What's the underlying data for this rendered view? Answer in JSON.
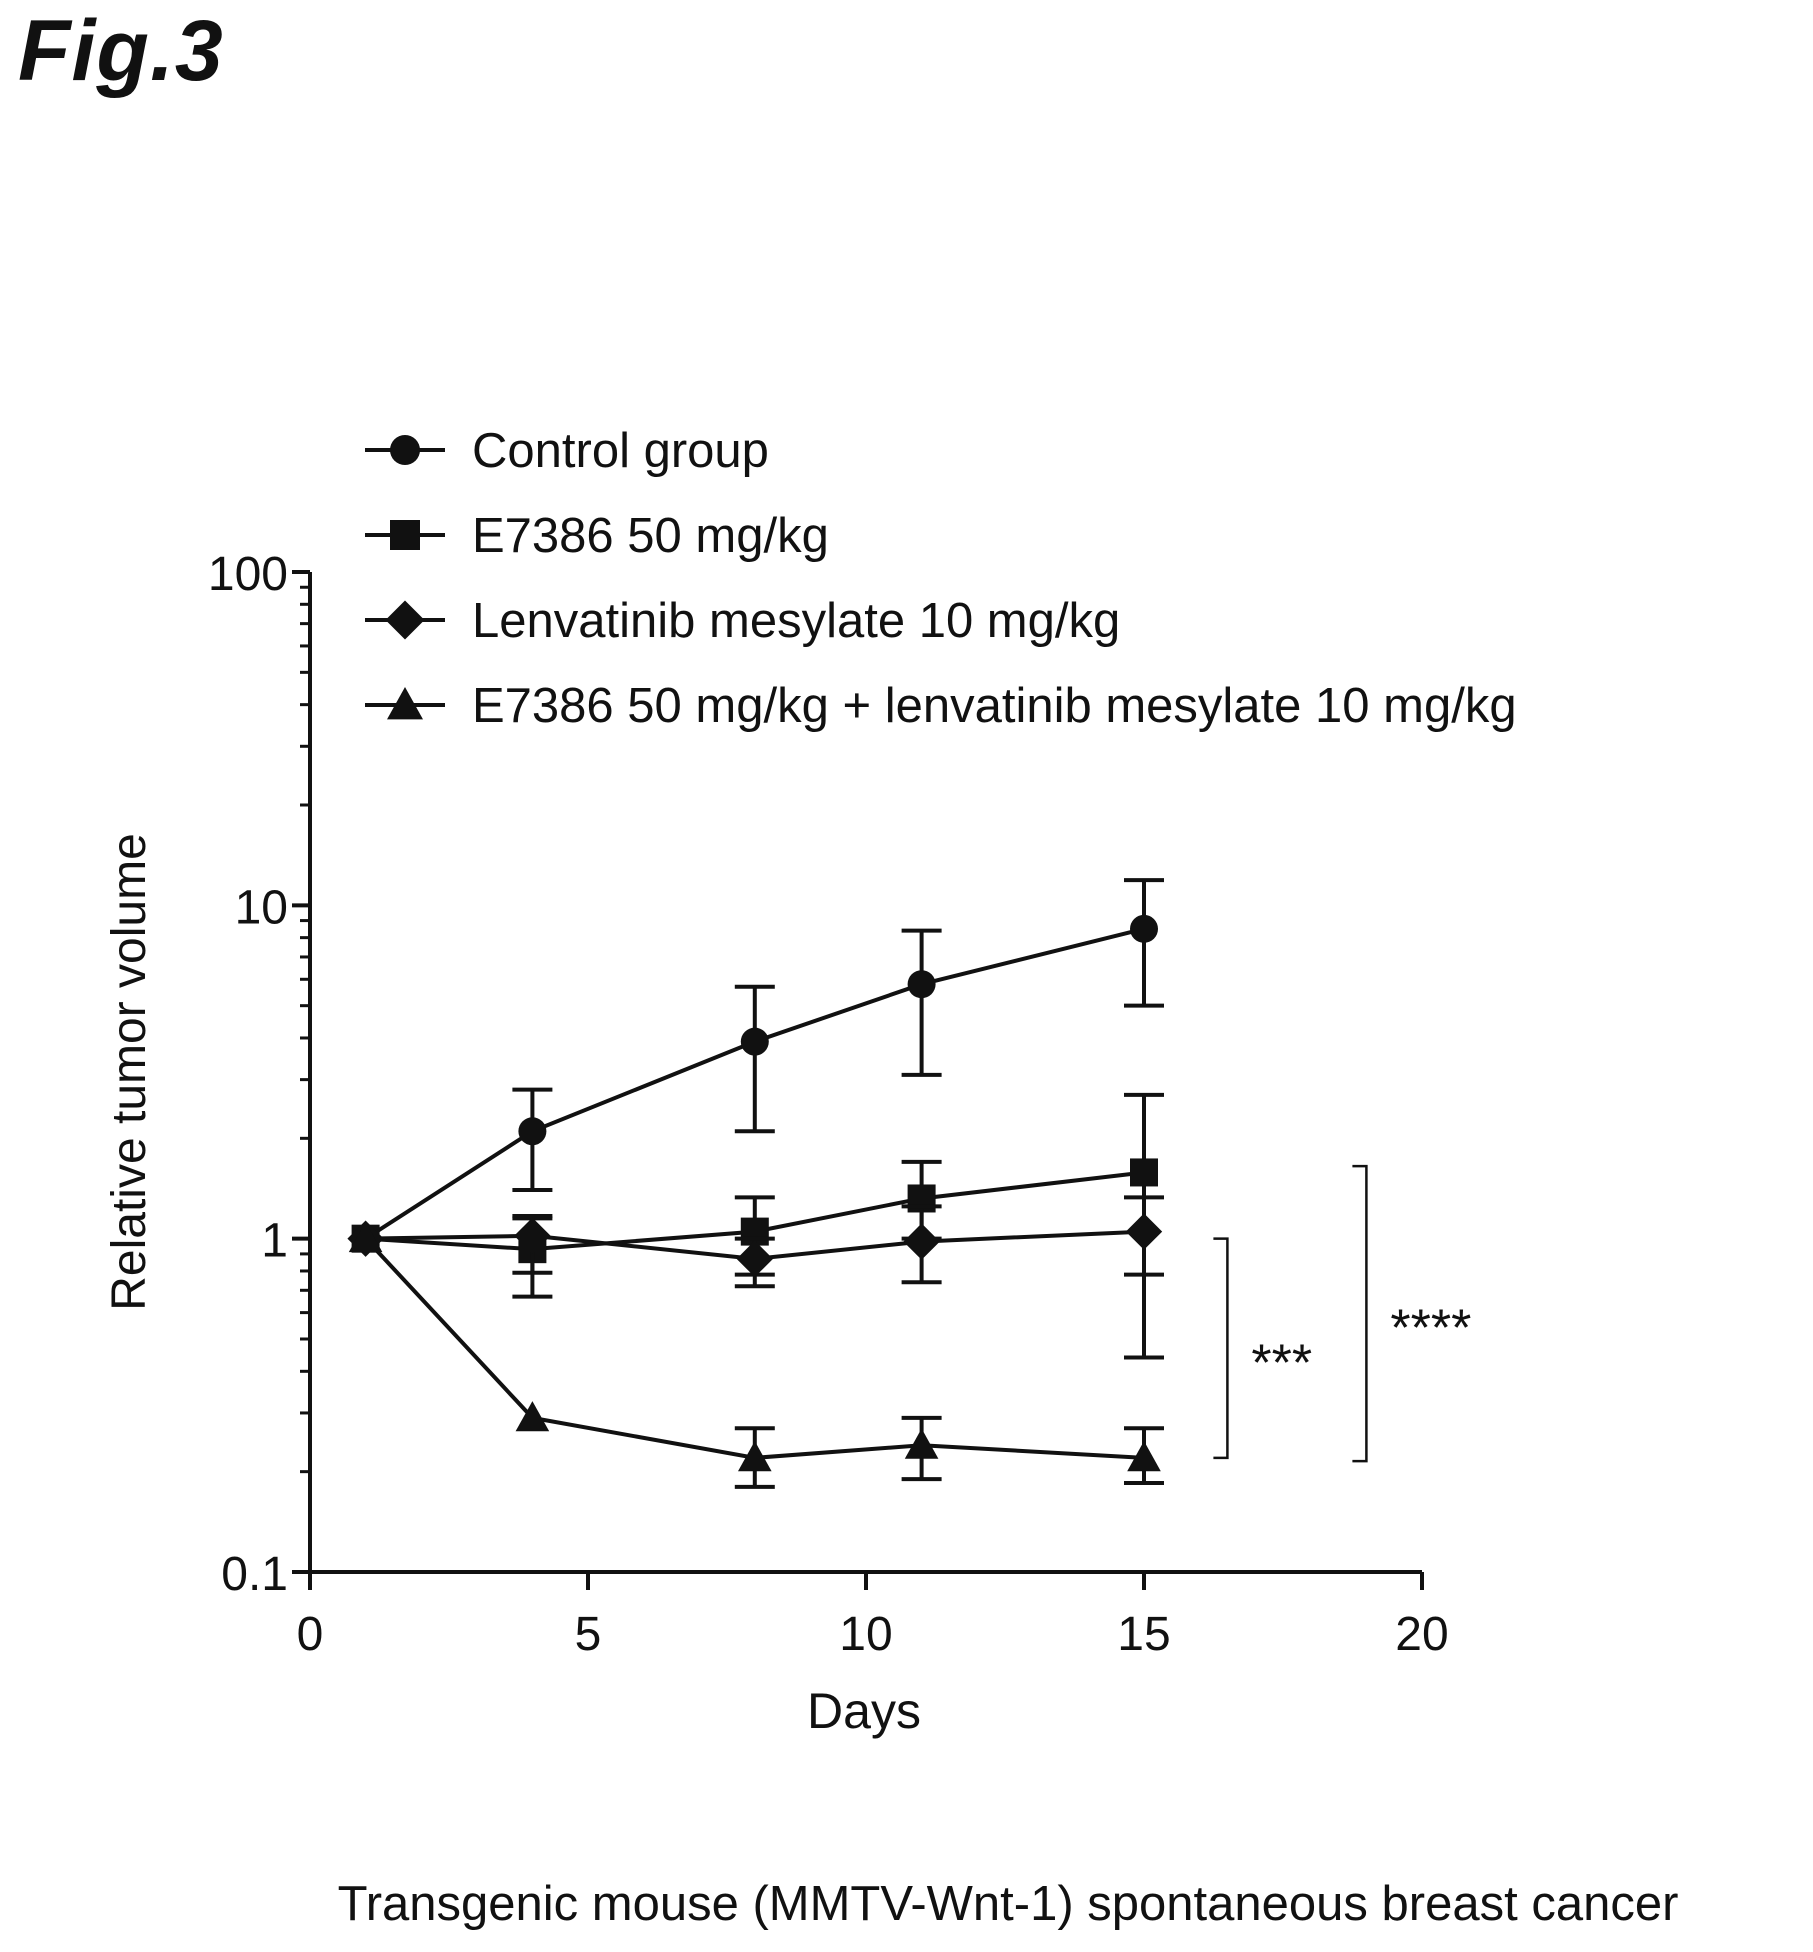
{
  "figure_label": "Fig.3",
  "chart_data": {
    "type": "line",
    "title": "",
    "caption": "Transgenic mouse (MMTV-Wnt-1) spontaneous breast cancer",
    "xlabel": "Days",
    "ylabel": "Relative tumor volume",
    "xlim": [
      0,
      20
    ],
    "ylim": [
      0.1,
      100
    ],
    "yscale": "log",
    "xticks": [
      0,
      5,
      10,
      15,
      20
    ],
    "xtick_labels": [
      "0",
      "5",
      "10",
      "15",
      "20"
    ],
    "yticks": [
      0.1,
      1,
      10,
      100
    ],
    "ytick_labels": [
      "0.1",
      "1",
      "10",
      "100"
    ],
    "legend_position": "top",
    "series": [
      {
        "name": "Control group",
        "marker": "circle",
        "x": [
          1,
          4,
          8,
          11,
          15
        ],
        "y": [
          1,
          2.1,
          3.9,
          5.8,
          8.5
        ],
        "err_low": [
          1,
          1.4,
          2.1,
          3.1,
          5.0
        ],
        "err_high": [
          1,
          2.8,
          5.7,
          8.4,
          11.9
        ]
      },
      {
        "name": "E7386 50 mg/kg",
        "marker": "square",
        "x": [
          1,
          4,
          8,
          11,
          15
        ],
        "y": [
          1,
          0.93,
          1.05,
          1.32,
          1.58
        ],
        "err_low": [
          1,
          0.79,
          0.78,
          1.0,
          0.44
        ],
        "err_high": [
          1,
          1.15,
          1.33,
          1.7,
          2.7
        ]
      },
      {
        "name": "Lenvatinib mesylate 10 mg/kg",
        "marker": "diamond",
        "x": [
          1,
          4,
          8,
          11,
          15
        ],
        "y": [
          1,
          1.02,
          0.87,
          0.98,
          1.05
        ],
        "err_low": [
          1,
          0.67,
          0.72,
          0.74,
          0.78
        ],
        "err_high": [
          1,
          1.17,
          1.0,
          1.25,
          1.33
        ]
      },
      {
        "name": "E7386 50 mg/kg + lenvatinib mesylate 10 mg/kg",
        "marker": "triangle",
        "x": [
          1,
          4,
          8,
          11,
          15
        ],
        "y": [
          1,
          0.29,
          0.22,
          0.24,
          0.22
        ],
        "err_low": [
          1,
          0.29,
          0.18,
          0.19,
          0.185
        ],
        "err_high": [
          1,
          0.29,
          0.27,
          0.29,
          0.27
        ]
      }
    ],
    "annotations": [
      {
        "label": "***",
        "y_range": [
          0.22,
          1.0
        ],
        "x_days": 16.5
      },
      {
        "label": "****",
        "y_range": [
          0.215,
          1.65
        ],
        "x_days": 19.0
      }
    ]
  }
}
